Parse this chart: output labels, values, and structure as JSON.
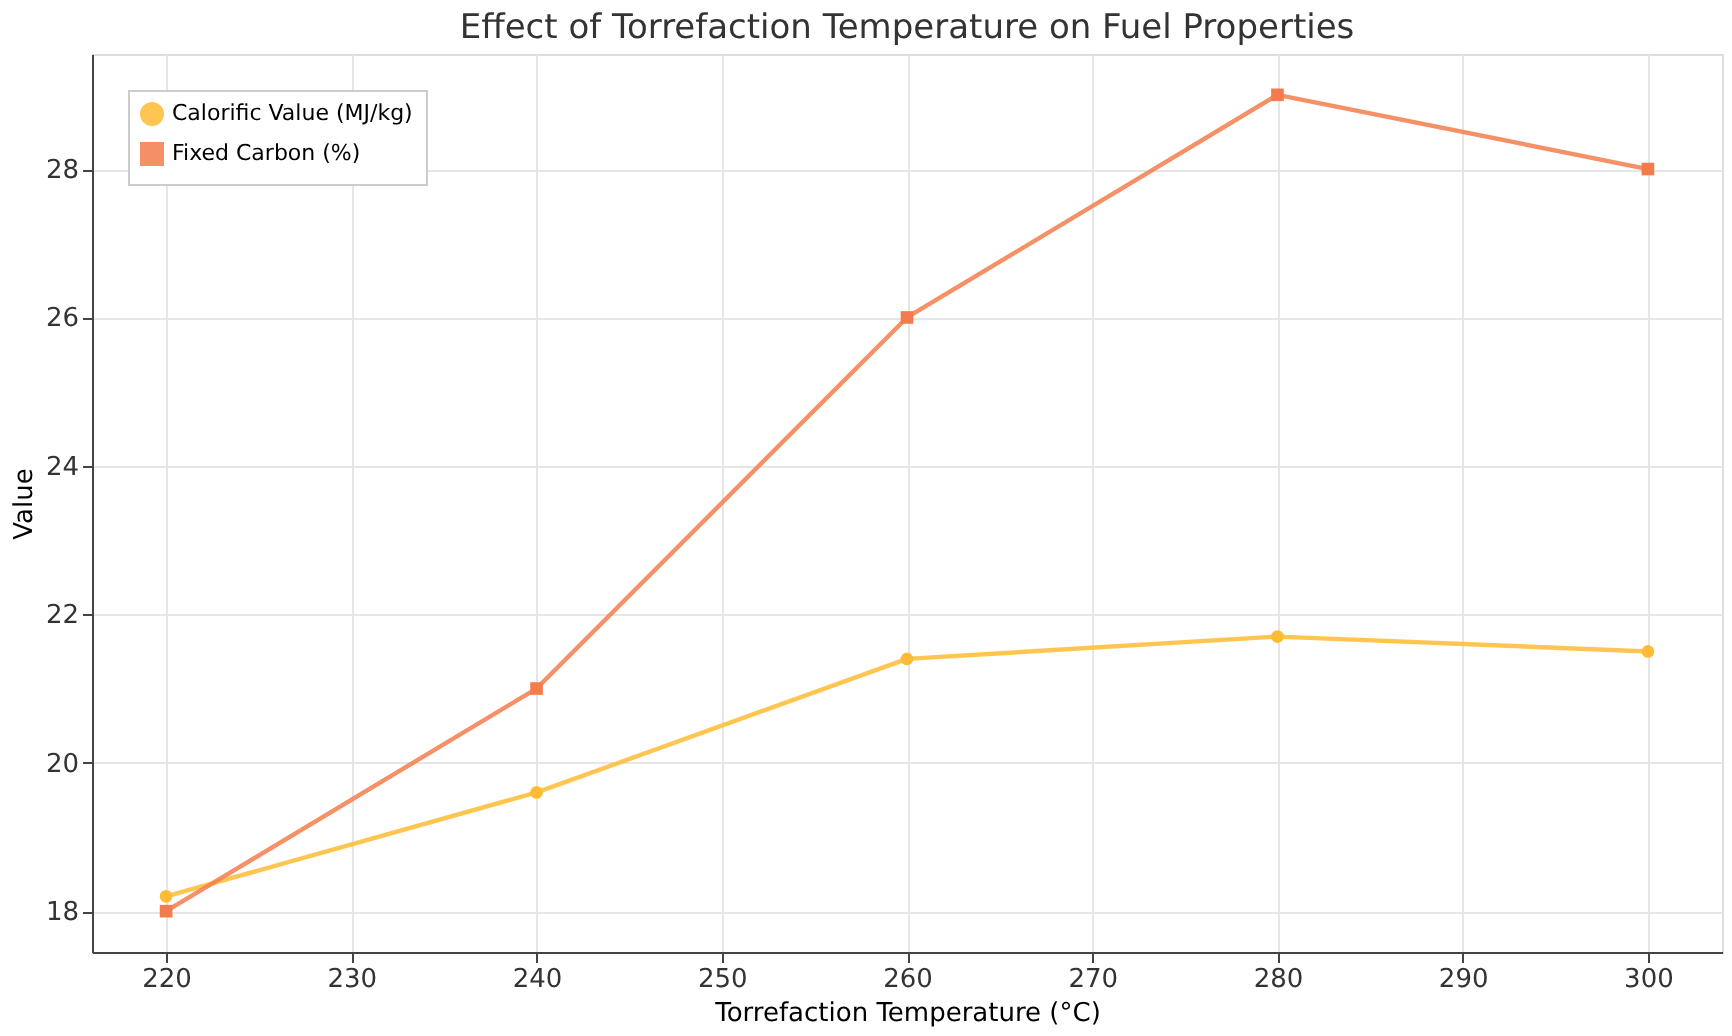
{
  "chart_data": {
    "type": "line",
    "title": "Effect of Torrefaction Temperature on Fuel Properties",
    "xlabel": "Torrefaction Temperature (°C)",
    "ylabel": "Value",
    "x": [
      220,
      240,
      260,
      280,
      300
    ],
    "series": [
      {
        "name": "Calorific Value (MJ/kg)",
        "color": "#ffbb33",
        "marker": "circle",
        "values": [
          18.2,
          19.6,
          21.4,
          21.7,
          21.5
        ]
      },
      {
        "name": "Fixed Carbon (%)",
        "color": "#f47c4c",
        "marker": "square",
        "values": [
          18,
          21,
          26,
          29,
          28
        ]
      }
    ],
    "xlim": [
      216,
      304
    ],
    "xticks": [
      220,
      230,
      240,
      250,
      260,
      270,
      280,
      290,
      300
    ],
    "ylim": [
      17.45,
      29.55
    ],
    "yticks": [
      18,
      20,
      22,
      24,
      26,
      28
    ],
    "grid": true,
    "legend": "top left",
    "line_style": "solid"
  }
}
